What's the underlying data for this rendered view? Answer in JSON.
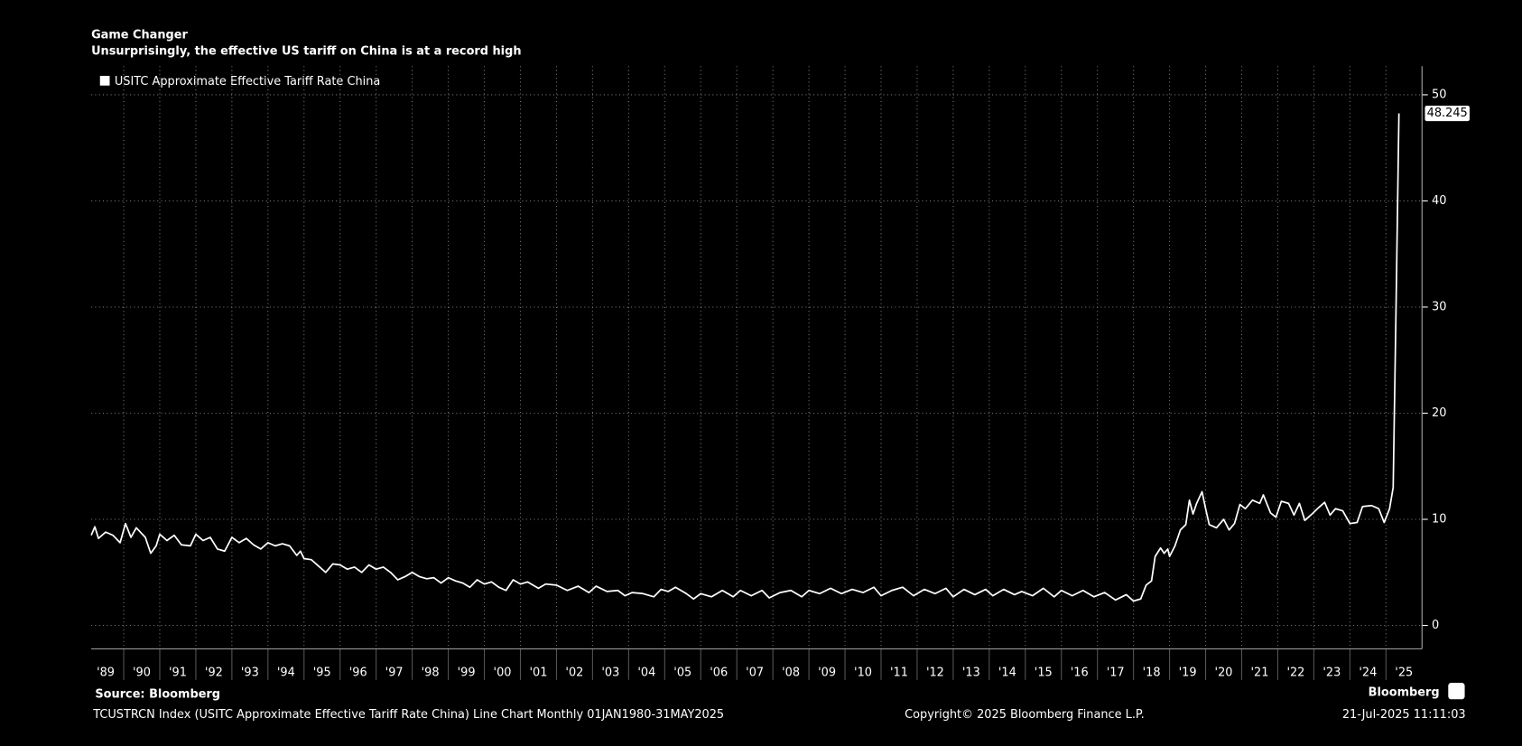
{
  "chart_data": {
    "type": "line",
    "title": "Game Changer",
    "subtitle": "Unsurprisingly, the effective US tariff on China is at a record high",
    "series": [
      {
        "name": "USITC Approximate Effective Tariff Rate China",
        "color": "#ffffff",
        "x": [
          1989.1,
          1989.2,
          1989.3,
          1989.5,
          1989.7,
          1989.9,
          1990.05,
          1990.2,
          1990.35,
          1990.6,
          1990.75,
          1990.9,
          1991.0,
          1991.2,
          1991.4,
          1991.6,
          1991.85,
          1992.0,
          1992.2,
          1992.4,
          1992.6,
          1992.8,
          1993.0,
          1993.2,
          1993.4,
          1993.6,
          1993.8,
          1994.0,
          1994.2,
          1994.4,
          1994.6,
          1994.8,
          1994.9,
          1995.0,
          1995.2,
          1995.4,
          1995.6,
          1995.8,
          1996.0,
          1996.2,
          1996.4,
          1996.6,
          1996.8,
          1997.0,
          1997.2,
          1997.4,
          1997.6,
          1997.8,
          1998.0,
          1998.2,
          1998.4,
          1998.6,
          1998.8,
          1999.0,
          1999.2,
          1999.4,
          1999.6,
          1999.8,
          2000.0,
          2000.2,
          2000.4,
          2000.6,
          2000.8,
          2001.0,
          2001.2,
          2001.5,
          2001.7,
          2002.0,
          2002.3,
          2002.6,
          2002.9,
          2003.1,
          2003.4,
          2003.7,
          2003.9,
          2004.1,
          2004.4,
          2004.7,
          2004.9,
          2005.1,
          2005.3,
          2005.6,
          2005.8,
          2006.0,
          2006.3,
          2006.6,
          2006.9,
          2007.1,
          2007.4,
          2007.7,
          2007.9,
          2008.2,
          2008.5,
          2008.8,
          2009.0,
          2009.3,
          2009.6,
          2009.9,
          2010.2,
          2010.5,
          2010.8,
          2011.0,
          2011.3,
          2011.6,
          2011.9,
          2012.2,
          2012.5,
          2012.8,
          2013.0,
          2013.3,
          2013.6,
          2013.9,
          2014.1,
          2014.4,
          2014.7,
          2014.9,
          2015.2,
          2015.5,
          2015.8,
          2016.0,
          2016.3,
          2016.6,
          2016.9,
          2017.2,
          2017.5,
          2017.8,
          2018.0,
          2018.2,
          2018.35,
          2018.5,
          2018.6,
          2018.75,
          2018.85,
          2018.95,
          2019.0,
          2019.15,
          2019.3,
          2019.45,
          2019.55,
          2019.65,
          2019.75,
          2019.9,
          2020.0,
          2020.1,
          2020.3,
          2020.5,
          2020.65,
          2020.8,
          2020.95,
          2021.1,
          2021.3,
          2021.5,
          2021.6,
          2021.8,
          2021.95,
          2022.1,
          2022.3,
          2022.45,
          2022.6,
          2022.75,
          2022.95,
          2023.1,
          2023.3,
          2023.45,
          2023.6,
          2023.8,
          2024.0,
          2024.2,
          2024.35,
          2024.6,
          2024.8,
          2024.95,
          2025.1,
          2025.2,
          2025.28,
          2025.36
        ],
        "values": [
          8.5,
          9.3,
          8.2,
          8.8,
          8.5,
          7.8,
          9.6,
          8.3,
          9.2,
          8.3,
          6.8,
          7.5,
          8.6,
          8.0,
          8.5,
          7.6,
          7.5,
          8.6,
          8.0,
          8.3,
          7.2,
          7.0,
          8.3,
          7.8,
          8.2,
          7.6,
          7.2,
          7.8,
          7.5,
          7.7,
          7.5,
          6.6,
          7.0,
          6.3,
          6.2,
          5.6,
          5.0,
          5.8,
          5.7,
          5.3,
          5.5,
          5.0,
          5.7,
          5.3,
          5.5,
          5.0,
          4.3,
          4.6,
          5.0,
          4.6,
          4.4,
          4.5,
          4.0,
          4.5,
          4.2,
          4.0,
          3.6,
          4.3,
          3.9,
          4.1,
          3.6,
          3.3,
          4.3,
          3.9,
          4.1,
          3.5,
          3.9,
          3.8,
          3.3,
          3.7,
          3.1,
          3.7,
          3.2,
          3.3,
          2.8,
          3.1,
          3.0,
          2.7,
          3.4,
          3.2,
          3.6,
          3.0,
          2.5,
          3.0,
          2.7,
          3.3,
          2.7,
          3.3,
          2.8,
          3.3,
          2.6,
          3.1,
          3.3,
          2.7,
          3.3,
          3.0,
          3.5,
          3.0,
          3.4,
          3.1,
          3.6,
          2.8,
          3.3,
          3.6,
          2.8,
          3.4,
          3.0,
          3.5,
          2.7,
          3.4,
          2.9,
          3.4,
          2.8,
          3.4,
          2.9,
          3.2,
          2.8,
          3.5,
          2.7,
          3.3,
          2.8,
          3.3,
          2.7,
          3.1,
          2.4,
          2.9,
          2.3,
          2.5,
          3.8,
          4.2,
          6.5,
          7.3,
          6.8,
          7.2,
          6.5,
          7.5,
          9.0,
          9.5,
          11.8,
          10.5,
          11.5,
          12.6,
          11.0,
          9.5,
          9.2,
          10.0,
          9.0,
          9.6,
          11.4,
          11.0,
          11.8,
          11.5,
          12.3,
          10.6,
          10.2,
          11.7,
          11.5,
          10.4,
          11.5,
          9.9,
          10.5,
          11.0,
          11.6,
          10.4,
          11.0,
          10.8,
          9.6,
          9.7,
          11.2,
          11.3,
          11.0,
          9.7,
          11.0,
          13.0,
          30,
          48.245
        ]
      }
    ],
    "xlim": [
      1989.1,
      2026
    ],
    "ylim": [
      -2.2,
      52.7
    ],
    "xticks": [
      {
        "value": 1989,
        "label": "'89"
      },
      {
        "value": 1990,
        "label": "'90"
      },
      {
        "value": 1991,
        "label": "'91"
      },
      {
        "value": 1992,
        "label": "'92"
      },
      {
        "value": 1993,
        "label": "'93"
      },
      {
        "value": 1994,
        "label": "'94"
      },
      {
        "value": 1995,
        "label": "'95"
      },
      {
        "value": 1996,
        "label": "'96"
      },
      {
        "value": 1997,
        "label": "'97"
      },
      {
        "value": 1998,
        "label": "'98"
      },
      {
        "value": 1999,
        "label": "'99"
      },
      {
        "value": 2000,
        "label": "'00"
      },
      {
        "value": 2001,
        "label": "'01"
      },
      {
        "value": 2002,
        "label": "'02"
      },
      {
        "value": 2003,
        "label": "'03"
      },
      {
        "value": 2004,
        "label": "'04"
      },
      {
        "value": 2005,
        "label": "'05"
      },
      {
        "value": 2006,
        "label": "'06"
      },
      {
        "value": 2007,
        "label": "'07"
      },
      {
        "value": 2008,
        "label": "'08"
      },
      {
        "value": 2009,
        "label": "'09"
      },
      {
        "value": 2010,
        "label": "'10"
      },
      {
        "value": 2011,
        "label": "'11"
      },
      {
        "value": 2012,
        "label": "'12"
      },
      {
        "value": 2013,
        "label": "'13"
      },
      {
        "value": 2014,
        "label": "'14"
      },
      {
        "value": 2015,
        "label": "'15"
      },
      {
        "value": 2016,
        "label": "'16"
      },
      {
        "value": 2017,
        "label": "'17"
      },
      {
        "value": 2018,
        "label": "'18"
      },
      {
        "value": 2019,
        "label": "'19"
      },
      {
        "value": 2020,
        "label": "'20"
      },
      {
        "value": 2021,
        "label": "'21"
      },
      {
        "value": 2022,
        "label": "'22"
      },
      {
        "value": 2023,
        "label": "'23"
      },
      {
        "value": 2024,
        "label": "'24"
      },
      {
        "value": 2025,
        "label": "'25"
      }
    ],
    "yticks": [
      0,
      10,
      20,
      30,
      40,
      50
    ],
    "grid": true
  },
  "source": "Source: Bloomberg",
  "footer": {
    "description": "TCUSTRCN Index (USITC Approximate Effective Tariff Rate China) Line Chart  Monthly 01JAN1980-31MAY2025",
    "copyright": "Copyright© 2025 Bloomberg Finance L.P.",
    "timestamp": "21-Jul-2025 11:11:03",
    "brand": "Bloomberg"
  }
}
